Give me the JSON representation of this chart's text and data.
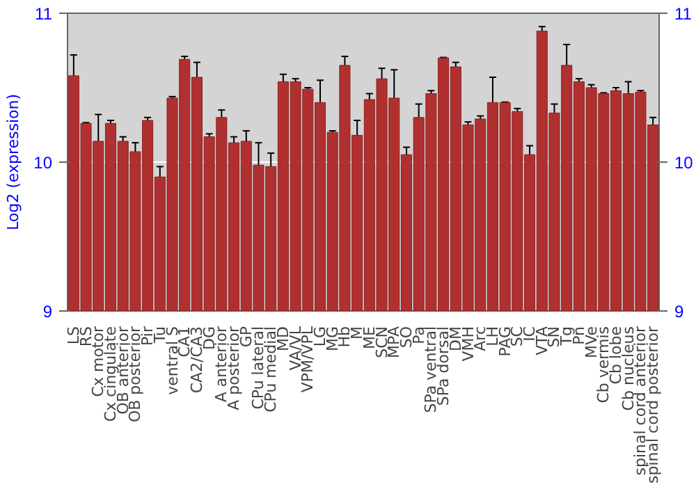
{
  "chart_data": {
    "type": "bar",
    "ylabel": "Log2 (expression)",
    "categories": [
      "LS",
      "RS",
      "Cx motor",
      "Cx cingulate",
      "OB anterior",
      "OB posterior",
      "Pir",
      "Tu",
      "ventral S",
      "CA1",
      "CA2/CA3",
      "DG",
      "A anterior",
      "A posterior",
      "GP",
      "CPu lateral",
      "CPu medial",
      "MD",
      "VA/VL",
      "VPM/VPL",
      "LG",
      "MG",
      "Hb",
      "M",
      "ME",
      "SCN",
      "MPA",
      "SO",
      "Pa",
      "SPa ventral",
      "SPa dorsal",
      "DM",
      "VMH",
      "Arc",
      "LH",
      "PAG",
      "SC",
      "IC",
      "VTA",
      "SN",
      "Tg",
      "Pn",
      "MVe",
      "Cb vermis",
      "Cb lobe",
      "Cb nucleus",
      "spinal cord anterior",
      "spinal cord posterior"
    ],
    "values": [
      10.58,
      10.26,
      10.14,
      10.26,
      10.14,
      10.07,
      10.28,
      9.9,
      10.43,
      10.69,
      10.57,
      10.17,
      10.3,
      10.13,
      10.14,
      9.98,
      9.97,
      10.54,
      10.54,
      10.49,
      10.4,
      10.2,
      10.65,
      10.18,
      10.42,
      10.56,
      10.43,
      10.05,
      10.3,
      10.46,
      10.7,
      10.64,
      10.25,
      10.29,
      10.4,
      10.4,
      10.34,
      10.05,
      10.88,
      10.33,
      10.65,
      10.54,
      10.5,
      10.46,
      10.48,
      10.46,
      10.47,
      10.25
    ],
    "errors": [
      0.14,
      0.005,
      0.18,
      0.02,
      0.03,
      0.06,
      0.02,
      0.07,
      0.01,
      0.02,
      0.1,
      0.02,
      0.05,
      0.04,
      0.07,
      0.15,
      0.09,
      0.05,
      0.02,
      0.01,
      0.15,
      0.01,
      0.06,
      0.1,
      0.04,
      0.07,
      0.19,
      0.05,
      0.09,
      0.02,
      0.003,
      0.03,
      0.02,
      0.02,
      0.17,
      0.003,
      0.02,
      0.06,
      0.03,
      0.06,
      0.14,
      0.02,
      0.02,
      0.005,
      0.02,
      0.08,
      0.01,
      0.05
    ],
    "color": "#b03030",
    "ylim": [
      9,
      11
    ],
    "yticks": [
      9,
      10,
      11
    ],
    "y2lim": [
      9,
      11
    ],
    "y2ticks": [
      9,
      10,
      11
    ],
    "grid": "y"
  }
}
